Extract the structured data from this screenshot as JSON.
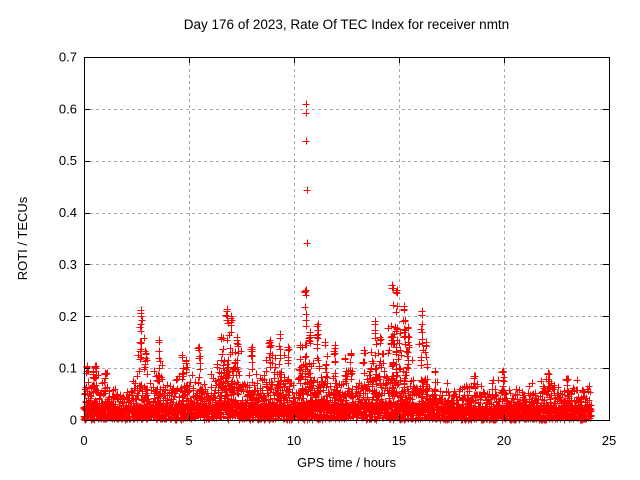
{
  "chart_data": {
    "type": "scatter",
    "title": "Day 176 of 2023, Rate Of TEC Index for receiver nmtn",
    "xlabel": "GPS time / hours",
    "ylabel": "ROTI / TECUs",
    "xlim": [
      0,
      25
    ],
    "ylim": [
      0,
      0.7
    ],
    "xticks": {
      "values": [
        0,
        5,
        10,
        15,
        20,
        25
      ],
      "labels": [
        "0",
        "5",
        "10",
        "15",
        "20",
        "25"
      ]
    },
    "yticks": {
      "values": [
        0,
        0.1,
        0.2,
        0.3,
        0.4,
        0.5,
        0.6,
        0.7
      ],
      "labels": [
        "0",
        "0.1",
        "0.2",
        "0.3",
        "0.4",
        "0.5",
        "0.6",
        "0.7"
      ]
    },
    "grid": "dashed",
    "legend": "none",
    "marker": "plus",
    "marker_color": "#ff0000",
    "grid_color": "#a8a8a8",
    "axis_color": "#000000",
    "background": "#ffffff",
    "data_x_start": 0.0,
    "data_x_end": 24.2,
    "baseline_envelope": [
      [
        0.0,
        0.055
      ],
      [
        0.3,
        0.075
      ],
      [
        0.5,
        0.095
      ],
      [
        0.8,
        0.065
      ],
      [
        1.0,
        0.085
      ],
      [
        1.3,
        0.06
      ],
      [
        1.7,
        0.055
      ],
      [
        2.0,
        0.06
      ],
      [
        2.3,
        0.07
      ],
      [
        2.6,
        0.075
      ],
      [
        3.0,
        0.065
      ],
      [
        3.3,
        0.06
      ],
      [
        3.6,
        0.07
      ],
      [
        4.0,
        0.065
      ],
      [
        4.3,
        0.075
      ],
      [
        4.7,
        0.08
      ],
      [
        5.0,
        0.07
      ],
      [
        5.3,
        0.08
      ],
      [
        5.6,
        0.075
      ],
      [
        6.0,
        0.07
      ],
      [
        6.3,
        0.085
      ],
      [
        6.6,
        0.09
      ],
      [
        7.0,
        0.09
      ],
      [
        7.3,
        0.085
      ],
      [
        7.6,
        0.075
      ],
      [
        8.0,
        0.08
      ],
      [
        8.3,
        0.07
      ],
      [
        8.6,
        0.08
      ],
      [
        9.0,
        0.09
      ],
      [
        9.3,
        0.085
      ],
      [
        9.6,
        0.08
      ],
      [
        10.0,
        0.055
      ],
      [
        10.3,
        0.08
      ],
      [
        10.6,
        0.09
      ],
      [
        11.0,
        0.09
      ],
      [
        11.3,
        0.085
      ],
      [
        11.6,
        0.08
      ],
      [
        12.0,
        0.075
      ],
      [
        12.3,
        0.08
      ],
      [
        12.6,
        0.085
      ],
      [
        13.0,
        0.07
      ],
      [
        13.3,
        0.08
      ],
      [
        13.6,
        0.09
      ],
      [
        14.0,
        0.09
      ],
      [
        14.3,
        0.085
      ],
      [
        14.6,
        0.095
      ],
      [
        15.0,
        0.08
      ],
      [
        15.3,
        0.075
      ],
      [
        15.6,
        0.07
      ],
      [
        16.0,
        0.075
      ],
      [
        16.4,
        0.07
      ],
      [
        16.8,
        0.065
      ],
      [
        17.2,
        0.06
      ],
      [
        17.6,
        0.065
      ],
      [
        18.0,
        0.06
      ],
      [
        18.4,
        0.065
      ],
      [
        18.8,
        0.055
      ],
      [
        19.2,
        0.06
      ],
      [
        19.6,
        0.07
      ],
      [
        20.0,
        0.065
      ],
      [
        20.4,
        0.055
      ],
      [
        20.8,
        0.06
      ],
      [
        21.2,
        0.065
      ],
      [
        21.6,
        0.06
      ],
      [
        22.0,
        0.07
      ],
      [
        22.4,
        0.065
      ],
      [
        22.8,
        0.055
      ],
      [
        23.2,
        0.06
      ],
      [
        23.6,
        0.065
      ],
      [
        24.0,
        0.06
      ],
      [
        24.2,
        0.055
      ]
    ],
    "spike_columns": [
      [
        0.12,
        0.105
      ],
      [
        0.45,
        0.095
      ],
      [
        0.55,
        0.105
      ],
      [
        1.0,
        0.09
      ],
      [
        2.71,
        0.212
      ],
      [
        2.95,
        0.13
      ],
      [
        3.57,
        0.155
      ],
      [
        4.67,
        0.125
      ],
      [
        4.86,
        0.115
      ],
      [
        5.48,
        0.14
      ],
      [
        6.52,
        0.16
      ],
      [
        6.81,
        0.215
      ],
      [
        7.0,
        0.2
      ],
      [
        7.29,
        0.16
      ],
      [
        8.0,
        0.14
      ],
      [
        8.86,
        0.155
      ],
      [
        9.33,
        0.165
      ],
      [
        9.71,
        0.14
      ],
      [
        10.29,
        0.145
      ],
      [
        10.57,
        0.25
      ],
      [
        10.76,
        0.17
      ],
      [
        11.1,
        0.185
      ],
      [
        11.52,
        0.15
      ],
      [
        11.95,
        0.145
      ],
      [
        12.43,
        0.12
      ],
      [
        12.71,
        0.13
      ],
      [
        13.33,
        0.135
      ],
      [
        13.86,
        0.19
      ],
      [
        14.1,
        0.16
      ],
      [
        14.67,
        0.26
      ],
      [
        14.9,
        0.25
      ],
      [
        15.24,
        0.22
      ],
      [
        15.43,
        0.18
      ],
      [
        16.1,
        0.21
      ],
      [
        16.29,
        0.15
      ],
      [
        16.7,
        0.095
      ],
      [
        18.6,
        0.085
      ],
      [
        19.95,
        0.095
      ],
      [
        22.1,
        0.09
      ],
      [
        23.0,
        0.08
      ]
    ],
    "outlier_points": [
      [
        10.57,
        0.61
      ],
      [
        10.57,
        0.592
      ],
      [
        10.58,
        0.538
      ],
      [
        10.6,
        0.443
      ],
      [
        10.62,
        0.341
      ]
    ]
  }
}
